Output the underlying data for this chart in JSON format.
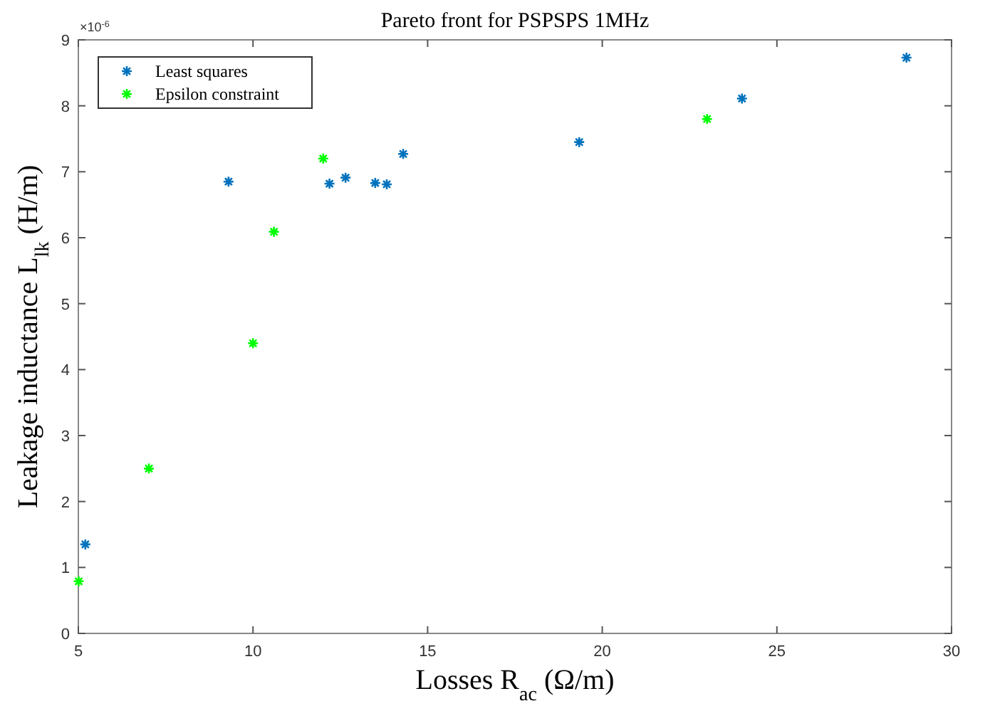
{
  "chart_data": {
    "type": "scatter",
    "title": "Pareto front for PSPSPS 1MHz",
    "xlabel": "Losses R$_{ac}$ (Ω/m)",
    "ylabel": "Leakage inductance L$_{lk}$ (H/m)",
    "annotations": [
      "×10$^{-6}$"
    ],
    "xlim": [
      5,
      30
    ],
    "xticks": [
      5,
      10,
      15,
      20,
      25,
      30
    ],
    "ylim": [
      0,
      9
    ],
    "yticks": [
      0,
      1,
      2,
      3,
      4,
      5,
      6,
      7,
      8,
      9
    ],
    "grid": false,
    "legend": "top left",
    "marker": "cross",
    "series": [
      {
        "name": "Least squares",
        "color": "#0072bd",
        "x": [
          5.2,
          9.3,
          12.19,
          12.65,
          13.5,
          13.83,
          14.3,
          19.34,
          24.0,
          28.71
        ],
        "values": [
          1.35,
          6.85,
          6.82,
          6.91,
          6.83,
          6.81,
          7.27,
          7.45,
          8.11,
          8.73
        ]
      },
      {
        "name": "Epsilon constraint",
        "color": "#00ff00",
        "x": [
          5.01,
          7.02,
          10.0,
          10.6,
          12.01,
          23.0
        ],
        "values": [
          0.79,
          2.5,
          4.4,
          6.09,
          7.2,
          7.8
        ]
      }
    ]
  }
}
